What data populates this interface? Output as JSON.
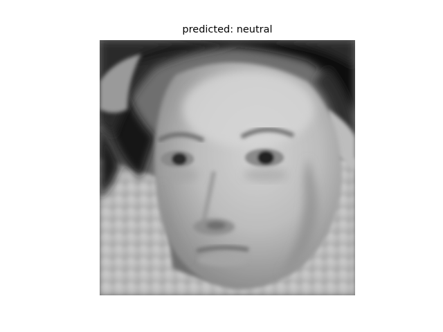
{
  "figure": {
    "title": "predicted: neutral"
  },
  "image": {
    "description_icon": "grayscale-face-portrait-image",
    "colors": {
      "background": "#ffffff",
      "dark": "#1a1a1a",
      "skin": "#b9b9b9",
      "ruff": "#c8c8c8"
    }
  }
}
